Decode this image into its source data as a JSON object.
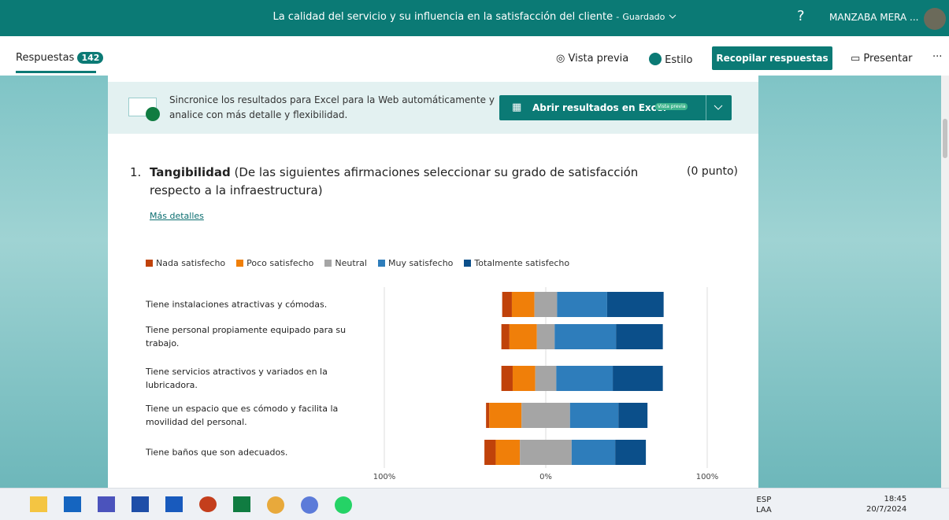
{
  "header": {
    "title": "La calidad del servicio y su influencia en la satisfacción del cliente",
    "separator": "-",
    "status": "Guardado",
    "help": "?",
    "user": "MANZABA MERA ..."
  },
  "toolbar": {
    "tab": "Respuestas",
    "count": 142,
    "preview": "Vista previa",
    "style": "Estilo",
    "collect": "Recopilar respuestas",
    "present": "Presentar",
    "more": "···"
  },
  "banner": {
    "text": "Sincronice los resultados para Excel para la Web automáticamente y analice con más detalle y flexibilidad.",
    "button": "Abrir resultados en Excel",
    "badge": "Vista previa"
  },
  "question": {
    "number": "1.",
    "title": "Tangibilidad",
    "text": "(De las siguientes afirmaciones seleccionar su grado de satisfacción respecto a la infraestructura)",
    "points": "(0 punto)",
    "link": "Más detalles"
  },
  "chart_data": {
    "type": "diverging-bar",
    "categories": [
      "Tiene instalaciones atractivas y cómodas.",
      "Tiene personal propiamente equipado para su trabajo.",
      "Tiene servicios atractivos y variados en la lubricadora.",
      "Tiene un espacio que es cómodo y facilita la movilidad del personal.",
      "Tiene baños que son adecuados."
    ],
    "series": [
      {
        "name": "Nada satisfecho",
        "color": "#c0420a",
        "values": [
          6,
          5,
          7,
          2,
          7
        ]
      },
      {
        "name": "Poco satisfecho",
        "color": "#f07f09",
        "values": [
          14,
          17,
          14,
          20,
          15
        ]
      },
      {
        "name": "Neutral",
        "color": "#a5a5a5",
        "values": [
          14,
          11,
          13,
          30,
          32
        ]
      },
      {
        "name": "Muy satisfecho",
        "color": "#2e7dbb",
        "values": [
          31,
          38,
          35,
          30,
          27
        ]
      },
      {
        "name": "Totalmente satisfecho",
        "color": "#0b4f8a",
        "values": [
          35,
          29,
          31,
          18,
          19
        ]
      }
    ],
    "xlim": [
      -100,
      100
    ],
    "xticks": [
      {
        "value": -100,
        "label": "100%"
      },
      {
        "value": 0,
        "label": "0%"
      },
      {
        "value": 100,
        "label": "100%"
      }
    ],
    "grid": true,
    "legend": "top"
  },
  "taskbar": {
    "language": "ESP",
    "layout": "LAA",
    "time": "18:45",
    "date": "20/7/2024"
  }
}
